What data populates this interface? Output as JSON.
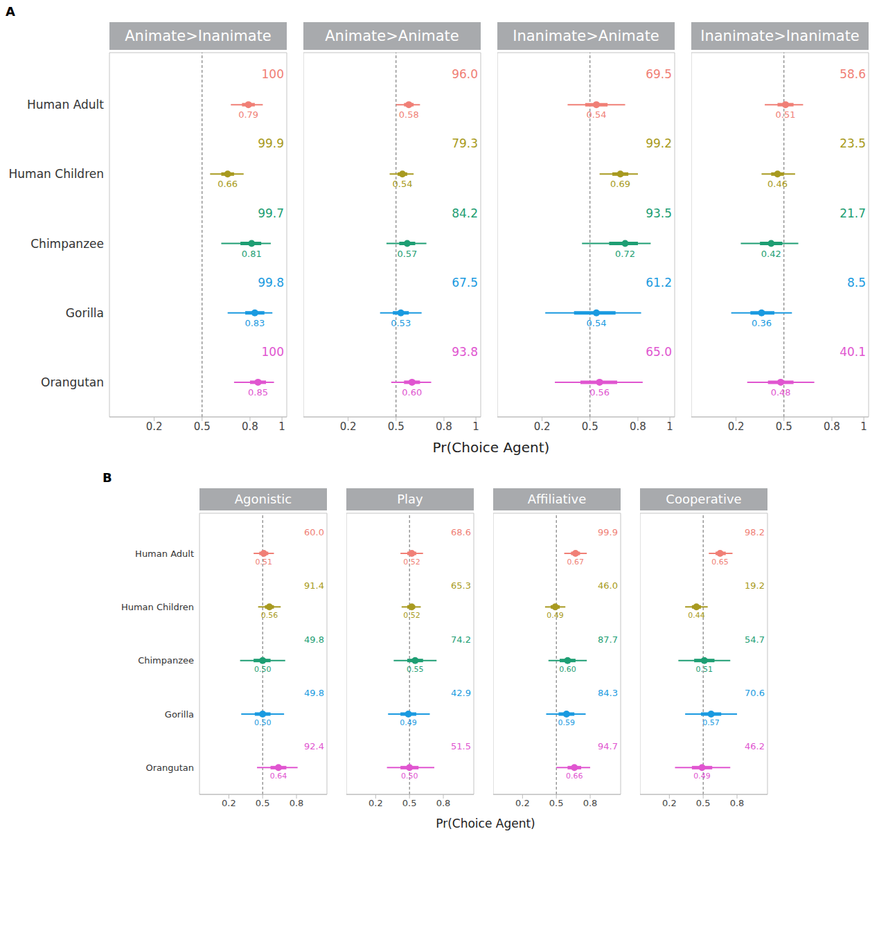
{
  "chart_data": [
    {
      "type": "interval",
      "label": "A",
      "xlabel": "Pr(Choice Agent)",
      "xlim": [
        -0.08,
        1.03
      ],
      "xticks": [
        0.2,
        0.5,
        0.8,
        1
      ],
      "reference_line": 0.5,
      "categories": [
        "Human Adult",
        "Human Children",
        "Chimpanzee",
        "Gorilla",
        "Orangutan"
      ],
      "colors": [
        "#F07F76",
        "#A89A20",
        "#1E9E73",
        "#1A9AE0",
        "#E055D0"
      ],
      "panels": [
        {
          "title": "Animate>Inanimate",
          "values": [
            0.79,
            0.66,
            0.81,
            0.83,
            0.85
          ],
          "value_labels": [
            "0.79",
            "0.66",
            "0.81",
            "0.83",
            "0.85"
          ],
          "interval_66": [
            [
              0.75,
              0.83
            ],
            [
              0.62,
              0.7
            ],
            [
              0.74,
              0.87
            ],
            [
              0.77,
              0.89
            ],
            [
              0.8,
              0.9
            ]
          ],
          "interval_95": [
            [
              0.68,
              0.88
            ],
            [
              0.55,
              0.76
            ],
            [
              0.62,
              0.93
            ],
            [
              0.66,
              0.94
            ],
            [
              0.7,
              0.95
            ]
          ],
          "prob": [
            100,
            99.9,
            99.7,
            99.8,
            100
          ],
          "prob_labels": [
            "100",
            "99.9",
            "99.7",
            "99.8",
            "100"
          ]
        },
        {
          "title": "Animate>Animate",
          "values": [
            0.58,
            0.54,
            0.57,
            0.53,
            0.6
          ],
          "value_labels": [
            "0.58",
            "0.54",
            "0.57",
            "0.53",
            "0.60"
          ],
          "interval_66": [
            [
              0.55,
              0.61
            ],
            [
              0.51,
              0.57
            ],
            [
              0.52,
              0.62
            ],
            [
              0.48,
              0.58
            ],
            [
              0.55,
              0.65
            ]
          ],
          "interval_95": [
            [
              0.5,
              0.65
            ],
            [
              0.46,
              0.61
            ],
            [
              0.44,
              0.69
            ],
            [
              0.4,
              0.66
            ],
            [
              0.47,
              0.72
            ]
          ],
          "prob": [
            96.0,
            79.3,
            84.2,
            67.5,
            93.8
          ],
          "prob_labels": [
            "96.0",
            "79.3",
            "84.2",
            "67.5",
            "93.8"
          ]
        },
        {
          "title": "Inanimate>Animate",
          "values": [
            0.54,
            0.69,
            0.72,
            0.54,
            0.56
          ],
          "value_labels": [
            "0.54",
            "0.69",
            "0.72",
            "0.54",
            "0.56"
          ],
          "interval_66": [
            [
              0.47,
              0.61
            ],
            [
              0.64,
              0.74
            ],
            [
              0.62,
              0.8
            ],
            [
              0.4,
              0.66
            ],
            [
              0.44,
              0.67
            ]
          ],
          "interval_95": [
            [
              0.36,
              0.72
            ],
            [
              0.56,
              0.8
            ],
            [
              0.45,
              0.88
            ],
            [
              0.22,
              0.82
            ],
            [
              0.28,
              0.83
            ]
          ],
          "prob": [
            69.5,
            99.2,
            93.5,
            61.2,
            65.0
          ],
          "prob_labels": [
            "69.5",
            "99.2",
            "93.5",
            "61.2",
            "65.0"
          ]
        },
        {
          "title": "Inanimate>Inanimate",
          "values": [
            0.51,
            0.46,
            0.42,
            0.36,
            0.48
          ],
          "value_labels": [
            "0.51",
            "0.46",
            "0.42",
            "0.36",
            "0.48"
          ],
          "interval_66": [
            [
              0.46,
              0.56
            ],
            [
              0.42,
              0.5
            ],
            [
              0.35,
              0.49
            ],
            [
              0.29,
              0.44
            ],
            [
              0.4,
              0.56
            ]
          ],
          "interval_95": [
            [
              0.38,
              0.62
            ],
            [
              0.36,
              0.57
            ],
            [
              0.23,
              0.59
            ],
            [
              0.17,
              0.55
            ],
            [
              0.27,
              0.69
            ]
          ],
          "prob": [
            58.6,
            23.5,
            21.7,
            8.5,
            40.1
          ],
          "prob_labels": [
            "58.6",
            "23.5",
            "21.7",
            "8.5",
            "40.1"
          ]
        }
      ]
    },
    {
      "type": "interval",
      "label": "B",
      "xlabel": "Pr(Choice Agent)",
      "xlim": [
        -0.06,
        1.07
      ],
      "xticks": [
        0.2,
        0.5,
        0.8
      ],
      "reference_line": 0.5,
      "categories": [
        "Human Adult",
        "Human Children",
        "Chimpanzee",
        "Gorilla",
        "Orangutan"
      ],
      "colors": [
        "#F07F76",
        "#A89A20",
        "#1E9E73",
        "#1A9AE0",
        "#E055D0"
      ],
      "panels": [
        {
          "title": "Agonistic",
          "values": [
            0.51,
            0.56,
            0.5,
            0.5,
            0.64
          ],
          "value_labels": [
            "0.51",
            "0.56",
            "0.50",
            "0.50",
            "0.64"
          ],
          "interval_66": [
            [
              0.47,
              0.55
            ],
            [
              0.52,
              0.6
            ],
            [
              0.42,
              0.57
            ],
            [
              0.43,
              0.57
            ],
            [
              0.57,
              0.71
            ]
          ],
          "interval_95": [
            [
              0.42,
              0.6
            ],
            [
              0.46,
              0.66
            ],
            [
              0.3,
              0.7
            ],
            [
              0.31,
              0.69
            ],
            [
              0.45,
              0.81
            ]
          ],
          "prob": [
            60.0,
            91.4,
            49.8,
            49.8,
            92.4
          ],
          "prob_labels": [
            "60.0",
            "91.4",
            "49.8",
            "49.8",
            "92.4"
          ]
        },
        {
          "title": "Play",
          "values": [
            0.52,
            0.52,
            0.55,
            0.49,
            0.5
          ],
          "value_labels": [
            "0.52",
            "0.52",
            "0.55",
            "0.49",
            "0.50"
          ],
          "interval_66": [
            [
              0.48,
              0.56
            ],
            [
              0.48,
              0.55
            ],
            [
              0.48,
              0.62
            ],
            [
              0.42,
              0.56
            ],
            [
              0.42,
              0.58
            ]
          ],
          "interval_95": [
            [
              0.42,
              0.62
            ],
            [
              0.43,
              0.6
            ],
            [
              0.36,
              0.74
            ],
            [
              0.31,
              0.68
            ],
            [
              0.3,
              0.72
            ]
          ],
          "prob": [
            68.6,
            65.3,
            74.2,
            42.9,
            51.5
          ],
          "prob_labels": [
            "68.6",
            "65.3",
            "74.2",
            "42.9",
            "51.5"
          ]
        },
        {
          "title": "Affiliative",
          "values": [
            0.67,
            0.49,
            0.6,
            0.59,
            0.66
          ],
          "value_labels": [
            "0.67",
            "0.49",
            "0.60",
            "0.59",
            "0.66"
          ],
          "interval_66": [
            [
              0.63,
              0.71
            ],
            [
              0.45,
              0.53
            ],
            [
              0.53,
              0.67
            ],
            [
              0.52,
              0.66
            ],
            [
              0.6,
              0.72
            ]
          ],
          "interval_95": [
            [
              0.57,
              0.77
            ],
            [
              0.4,
              0.58
            ],
            [
              0.43,
              0.77
            ],
            [
              0.41,
              0.76
            ],
            [
              0.5,
              0.8
            ]
          ],
          "prob": [
            99.9,
            46.0,
            87.7,
            84.3,
            94.7
          ],
          "prob_labels": [
            "99.9",
            "46.0",
            "87.7",
            "84.3",
            "94.7"
          ]
        },
        {
          "title": "Cooperative",
          "values": [
            0.65,
            0.44,
            0.51,
            0.57,
            0.49
          ],
          "value_labels": [
            "0.65",
            "0.44",
            "0.51",
            "0.57",
            "0.49"
          ],
          "interval_66": [
            [
              0.61,
              0.7
            ],
            [
              0.4,
              0.48
            ],
            [
              0.42,
              0.6
            ],
            [
              0.48,
              0.66
            ],
            [
              0.4,
              0.58
            ]
          ],
          "interval_95": [
            [
              0.55,
              0.76
            ],
            [
              0.34,
              0.54
            ],
            [
              0.28,
              0.74
            ],
            [
              0.34,
              0.8
            ],
            [
              0.25,
              0.74
            ]
          ],
          "prob": [
            98.2,
            19.2,
            54.7,
            70.6,
            46.2
          ],
          "prob_labels": [
            "98.2",
            "19.2",
            "54.7",
            "70.6",
            "46.2"
          ]
        }
      ]
    }
  ]
}
